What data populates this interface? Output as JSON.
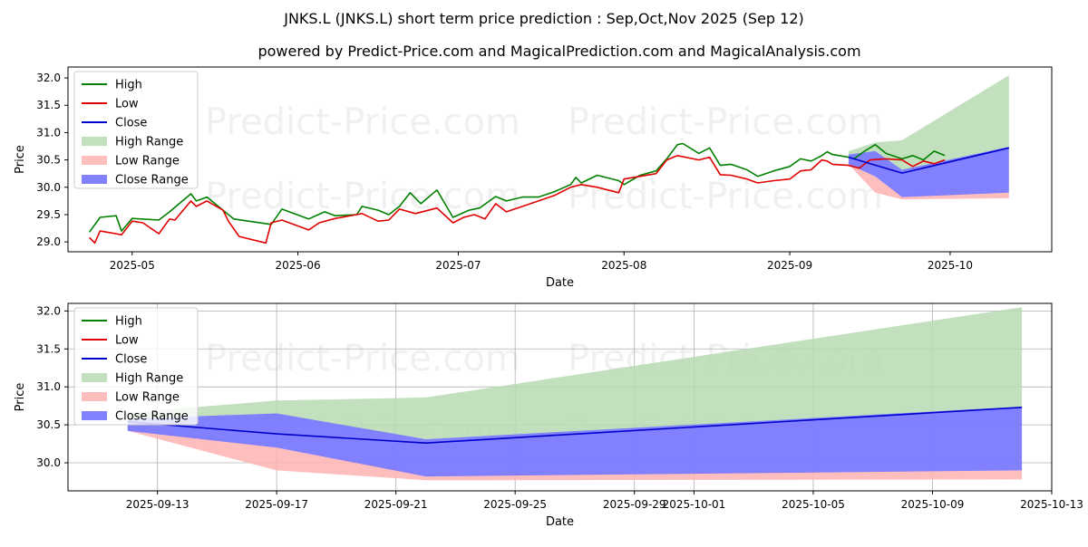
{
  "title": "JNKS.L (JNKS.L) short term price prediction : Sep,Oct,Nov 2025 (Sep 12)",
  "subtitle": "powered by Predict-Price.com and MagicalPrediction.com and MagicalAnalysis.com",
  "watermark": "Predict-Price.com",
  "colors": {
    "high": "#008000",
    "low": "#e00000",
    "close": "#0000cc",
    "high_range": "#b7dbb3",
    "low_range": "#ffb3b3",
    "close_range": "#7a7aff"
  },
  "chart_data": [
    {
      "type": "line",
      "xlabel": "Date",
      "ylabel": "Price",
      "xlim": [
        "2025-04-19",
        "2025-10-20"
      ],
      "ylim": [
        28.82,
        32.2
      ],
      "grid": false,
      "legend_position": "top-left",
      "x_ticks": [
        "2025-05-01",
        "2025-06-01",
        "2025-07-01",
        "2025-08-01",
        "2025-09-01",
        "2025-10-01"
      ],
      "x_tick_labels": [
        "2025-05",
        "2025-06",
        "2025-07",
        "2025-08",
        "2025-09",
        "2025-10"
      ],
      "y_ticks": [
        29.0,
        29.5,
        30.0,
        30.5,
        31.0,
        31.5,
        32.0
      ],
      "y_tick_labels": [
        "29.0",
        "29.5",
        "30.0",
        "30.5",
        "31.0",
        "31.5",
        "32.0"
      ],
      "legend": [
        "High",
        "Low",
        "Close",
        "High Range",
        "Low Range",
        "Close Range"
      ],
      "series": [
        {
          "name": "High",
          "points": [
            [
              "2025-04-23",
              29.18
            ],
            [
              "2025-04-25",
              29.45
            ],
            [
              "2025-04-28",
              29.48
            ],
            [
              "2025-04-29",
              29.2
            ],
            [
              "2025-05-01",
              29.43
            ],
            [
              "2025-05-06",
              29.4
            ],
            [
              "2025-05-08",
              29.55
            ],
            [
              "2025-05-12",
              29.88
            ],
            [
              "2025-05-13",
              29.75
            ],
            [
              "2025-05-15",
              29.82
            ],
            [
              "2025-05-18",
              29.58
            ],
            [
              "2025-05-20",
              29.42
            ],
            [
              "2025-05-27",
              29.32
            ],
            [
              "2025-05-29",
              29.6
            ],
            [
              "2025-06-03",
              29.42
            ],
            [
              "2025-06-06",
              29.55
            ],
            [
              "2025-06-08",
              29.48
            ],
            [
              "2025-06-12",
              29.5
            ],
            [
              "2025-06-13",
              29.65
            ],
            [
              "2025-06-16",
              29.58
            ],
            [
              "2025-06-18",
              29.5
            ],
            [
              "2025-06-20",
              29.65
            ],
            [
              "2025-06-22",
              29.9
            ],
            [
              "2025-06-24",
              29.7
            ],
            [
              "2025-06-27",
              29.95
            ],
            [
              "2025-06-30",
              29.45
            ],
            [
              "2025-07-03",
              29.58
            ],
            [
              "2025-07-05",
              29.62
            ],
            [
              "2025-07-08",
              29.83
            ],
            [
              "2025-07-10",
              29.75
            ],
            [
              "2025-07-13",
              29.82
            ],
            [
              "2025-07-16",
              29.82
            ],
            [
              "2025-07-19",
              29.92
            ],
            [
              "2025-07-22",
              30.05
            ],
            [
              "2025-07-23",
              30.18
            ],
            [
              "2025-07-24",
              30.08
            ],
            [
              "2025-07-27",
              30.22
            ],
            [
              "2025-07-31",
              30.12
            ],
            [
              "2025-08-01",
              30.05
            ],
            [
              "2025-08-04",
              30.22
            ],
            [
              "2025-08-07",
              30.3
            ],
            [
              "2025-08-09",
              30.52
            ],
            [
              "2025-08-11",
              30.78
            ],
            [
              "2025-08-12",
              30.8
            ],
            [
              "2025-08-15",
              30.62
            ],
            [
              "2025-08-17",
              30.72
            ],
            [
              "2025-08-19",
              30.4
            ],
            [
              "2025-08-21",
              30.42
            ],
            [
              "2025-08-24",
              30.32
            ],
            [
              "2025-08-26",
              30.2
            ],
            [
              "2025-08-29",
              30.3
            ],
            [
              "2025-09-01",
              30.38
            ],
            [
              "2025-09-03",
              30.52
            ],
            [
              "2025-09-05",
              30.48
            ],
            [
              "2025-09-07",
              30.58
            ],
            [
              "2025-09-08",
              30.65
            ],
            [
              "2025-09-09",
              30.6
            ],
            [
              "2025-09-12",
              30.55
            ],
            [
              "2025-09-13",
              30.52
            ],
            [
              "2025-09-15",
              30.66
            ],
            [
              "2025-09-17",
              30.78
            ],
            [
              "2025-09-19",
              30.62
            ],
            [
              "2025-09-22",
              30.52
            ],
            [
              "2025-09-24",
              30.58
            ],
            [
              "2025-09-26",
              30.5
            ],
            [
              "2025-09-28",
              30.66
            ],
            [
              "2025-09-30",
              30.58
            ]
          ]
        },
        {
          "name": "Low",
          "points": [
            [
              "2025-04-23",
              29.08
            ],
            [
              "2025-04-24",
              28.98
            ],
            [
              "2025-04-25",
              29.2
            ],
            [
              "2025-04-28",
              29.15
            ],
            [
              "2025-04-29",
              29.13
            ],
            [
              "2025-05-01",
              29.38
            ],
            [
              "2025-05-03",
              29.35
            ],
            [
              "2025-05-06",
              29.15
            ],
            [
              "2025-05-08",
              29.42
            ],
            [
              "2025-05-09",
              29.4
            ],
            [
              "2025-05-12",
              29.75
            ],
            [
              "2025-05-13",
              29.65
            ],
            [
              "2025-05-15",
              29.75
            ],
            [
              "2025-05-18",
              29.58
            ],
            [
              "2025-05-19",
              29.38
            ],
            [
              "2025-05-21",
              29.1
            ],
            [
              "2025-05-26",
              28.98
            ],
            [
              "2025-05-27",
              29.35
            ],
            [
              "2025-05-29",
              29.4
            ],
            [
              "2025-06-03",
              29.22
            ],
            [
              "2025-06-05",
              29.35
            ],
            [
              "2025-06-08",
              29.43
            ],
            [
              "2025-06-12",
              29.5
            ],
            [
              "2025-06-13",
              29.52
            ],
            [
              "2025-06-16",
              29.38
            ],
            [
              "2025-06-18",
              29.4
            ],
            [
              "2025-06-20",
              29.6
            ],
            [
              "2025-06-23",
              29.52
            ],
            [
              "2025-06-27",
              29.62
            ],
            [
              "2025-06-30",
              29.35
            ],
            [
              "2025-07-02",
              29.45
            ],
            [
              "2025-07-04",
              29.5
            ],
            [
              "2025-07-06",
              29.42
            ],
            [
              "2025-07-08",
              29.7
            ],
            [
              "2025-07-10",
              29.55
            ],
            [
              "2025-07-13",
              29.65
            ],
            [
              "2025-07-16",
              29.75
            ],
            [
              "2025-07-19",
              29.85
            ],
            [
              "2025-07-22",
              30.0
            ],
            [
              "2025-07-24",
              30.05
            ],
            [
              "2025-07-27",
              30.0
            ],
            [
              "2025-07-31",
              29.9
            ],
            [
              "2025-08-01",
              30.15
            ],
            [
              "2025-08-04",
              30.2
            ],
            [
              "2025-08-07",
              30.25
            ],
            [
              "2025-08-09",
              30.5
            ],
            [
              "2025-08-11",
              30.58
            ],
            [
              "2025-08-15",
              30.5
            ],
            [
              "2025-08-17",
              30.55
            ],
            [
              "2025-08-19",
              30.23
            ],
            [
              "2025-08-21",
              30.22
            ],
            [
              "2025-08-24",
              30.15
            ],
            [
              "2025-08-26",
              30.08
            ],
            [
              "2025-08-29",
              30.12
            ],
            [
              "2025-09-01",
              30.15
            ],
            [
              "2025-09-03",
              30.3
            ],
            [
              "2025-09-05",
              30.32
            ],
            [
              "2025-09-07",
              30.5
            ],
            [
              "2025-09-08",
              30.48
            ],
            [
              "2025-09-09",
              30.42
            ],
            [
              "2025-09-12",
              30.4
            ],
            [
              "2025-09-14",
              30.35
            ],
            [
              "2025-09-16",
              30.5
            ],
            [
              "2025-09-19",
              30.52
            ],
            [
              "2025-09-22",
              30.5
            ],
            [
              "2025-09-24",
              30.38
            ],
            [
              "2025-09-26",
              30.48
            ],
            [
              "2025-09-28",
              30.43
            ],
            [
              "2025-09-30",
              30.5
            ]
          ]
        },
        {
          "name": "Close",
          "points": [
            [
              "2025-09-12",
              30.55
            ],
            [
              "2025-09-22",
              30.26
            ],
            [
              "2025-10-12",
              30.72
            ]
          ]
        }
      ],
      "ranges": [
        {
          "name": "High Range",
          "upper": [
            [
              "2025-09-12",
              30.66
            ],
            [
              "2025-09-17",
              30.82
            ],
            [
              "2025-09-22",
              30.86
            ],
            [
              "2025-10-12",
              32.05
            ]
          ],
          "lower": [
            [
              "2025-09-12",
              30.5
            ],
            [
              "2025-09-17",
              30.6
            ],
            [
              "2025-09-22",
              30.3
            ],
            [
              "2025-10-12",
              30.72
            ]
          ]
        },
        {
          "name": "Low Range",
          "upper": [
            [
              "2025-09-12",
              30.5
            ],
            [
              "2025-09-17",
              30.2
            ],
            [
              "2025-09-22",
              29.85
            ],
            [
              "2025-10-12",
              29.9
            ]
          ],
          "lower": [
            [
              "2025-09-12",
              30.42
            ],
            [
              "2025-09-17",
              29.9
            ],
            [
              "2025-09-22",
              29.78
            ],
            [
              "2025-10-12",
              29.8
            ]
          ]
        },
        {
          "name": "Close Range",
          "upper": [
            [
              "2025-09-12",
              30.6
            ],
            [
              "2025-09-17",
              30.66
            ],
            [
              "2025-09-22",
              30.32
            ],
            [
              "2025-10-12",
              30.74
            ]
          ],
          "lower": [
            [
              "2025-09-12",
              30.42
            ],
            [
              "2025-09-17",
              30.2
            ],
            [
              "2025-09-22",
              29.82
            ],
            [
              "2025-10-12",
              29.9
            ]
          ]
        }
      ]
    },
    {
      "type": "line",
      "xlabel": "Date",
      "ylabel": "Price",
      "xlim": [
        "2025-09-10",
        "2025-10-13"
      ],
      "ylim": [
        29.63,
        32.1
      ],
      "grid": true,
      "legend_position": "top-left",
      "x_ticks": [
        "2025-09-13",
        "2025-09-17",
        "2025-09-21",
        "2025-09-25",
        "2025-09-29",
        "2025-10-01",
        "2025-10-05",
        "2025-10-09",
        "2025-10-13"
      ],
      "x_tick_labels": [
        "2025-09-13",
        "2025-09-17",
        "2025-09-21",
        "2025-09-25",
        "2025-09-29",
        "2025-10-01",
        "2025-10-05",
        "2025-10-09",
        "2025-10-13"
      ],
      "y_ticks": [
        30.0,
        30.5,
        31.0,
        31.5,
        32.0
      ],
      "y_tick_labels": [
        "30.0",
        "30.5",
        "31.0",
        "31.5",
        "32.0"
      ],
      "legend": [
        "High",
        "Low",
        "Close",
        "High Range",
        "Low Range",
        "Close Range"
      ],
      "series": [
        {
          "name": "High",
          "points": []
        },
        {
          "name": "Low",
          "points": []
        },
        {
          "name": "Close",
          "points": [
            [
              "2025-09-12",
              30.54
            ],
            [
              "2025-09-17",
              30.38
            ],
            [
              "2025-09-22",
              30.26
            ],
            [
              "2025-10-12",
              30.73
            ]
          ]
        }
      ],
      "ranges": [
        {
          "name": "High Range",
          "upper": [
            [
              "2025-09-12",
              30.66
            ],
            [
              "2025-09-17",
              30.82
            ],
            [
              "2025-09-22",
              30.86
            ],
            [
              "2025-10-12",
              32.05
            ]
          ],
          "lower": [
            [
              "2025-09-12",
              30.5
            ],
            [
              "2025-09-17",
              30.6
            ],
            [
              "2025-09-22",
              30.31
            ],
            [
              "2025-10-12",
              30.72
            ]
          ]
        },
        {
          "name": "Low Range",
          "upper": [
            [
              "2025-09-12",
              30.5
            ],
            [
              "2025-09-17",
              30.2
            ],
            [
              "2025-09-22",
              29.85
            ],
            [
              "2025-10-12",
              29.9
            ]
          ],
          "lower": [
            [
              "2025-09-12",
              30.42
            ],
            [
              "2025-09-17",
              29.9
            ],
            [
              "2025-09-22",
              29.77
            ],
            [
              "2025-10-12",
              29.78
            ]
          ]
        },
        {
          "name": "Close Range",
          "upper": [
            [
              "2025-09-12",
              30.58
            ],
            [
              "2025-09-17",
              30.65
            ],
            [
              "2025-09-22",
              30.31
            ],
            [
              "2025-10-12",
              30.74
            ]
          ],
          "lower": [
            [
              "2025-09-12",
              30.42
            ],
            [
              "2025-09-17",
              30.2
            ],
            [
              "2025-09-22",
              29.82
            ],
            [
              "2025-10-12",
              29.9
            ]
          ]
        }
      ]
    }
  ]
}
